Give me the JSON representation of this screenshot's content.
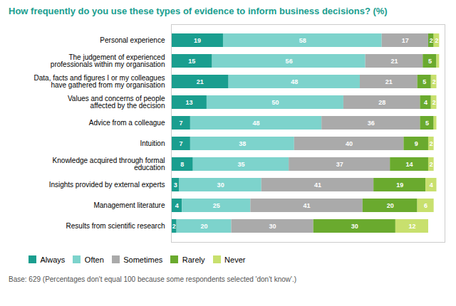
{
  "chart_data": {
    "type": "bar",
    "orientation": "horizontal",
    "stacked": true,
    "title": "How frequently do you use these types of evidence to inform business decisions? (%)",
    "caption": "Base: 629 (Percentages don't equal 100 because some respondents selected 'don't know'.)",
    "categories": [
      "Personal experience",
      "The judgement of experienced\nprofessionals within my organisation",
      "Data, facts and figures I or my colleagues\nhave gathered from my organisation",
      "Values and concerns of people\naffected by the decision",
      "Advice from a colleague",
      "Intuition",
      "Knowledge acquired through formal\neducation",
      "Insights provided by external experts",
      "Management literature",
      "Results from scientific research"
    ],
    "series": [
      {
        "name": "Always",
        "color": "#1a9e8f",
        "values": [
          19,
          15,
          21,
          13,
          7,
          7,
          8,
          3,
          4,
          2
        ]
      },
      {
        "name": "Often",
        "color": "#7dd3cc",
        "values": [
          58,
          56,
          48,
          50,
          48,
          38,
          35,
          30,
          25,
          20
        ]
      },
      {
        "name": "Sometimes",
        "color": "#aaaaaa",
        "values": [
          17,
          21,
          21,
          28,
          36,
          40,
          37,
          41,
          41,
          30
        ]
      },
      {
        "name": "Rarely",
        "color": "#6aaa2e",
        "values": [
          2,
          5,
          5,
          4,
          5,
          9,
          14,
          19,
          20,
          30
        ]
      },
      {
        "name": "Never",
        "color": "#c8e06e",
        "values": [
          2,
          1,
          2,
          2,
          1,
          2,
          2,
          4,
          6,
          12
        ],
        "value_labels": [
          "2",
          null,
          "2",
          "2",
          null,
          "2",
          "2",
          "4",
          "6",
          "12"
        ]
      }
    ],
    "xlim": [
      0,
      100
    ],
    "tick_labels": "y",
    "grid": false,
    "data_labels": true,
    "legend": "bottom",
    "title_color": "#1a9e8f"
  }
}
